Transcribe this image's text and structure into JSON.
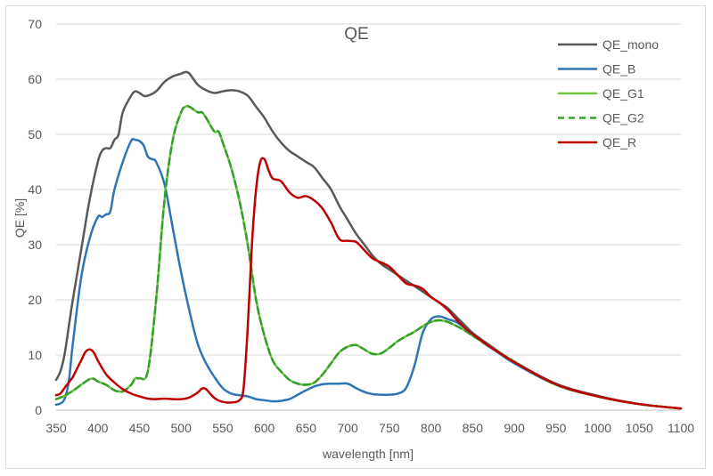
{
  "chart_data": {
    "type": "line",
    "title": "QE",
    "xlabel": "wavelength [nm]",
    "ylabel": "QE [%]",
    "xlim": [
      350,
      1100
    ],
    "ylim": [
      0,
      70
    ],
    "x_ticks": [
      "350",
      "400",
      "450",
      "500",
      "550",
      "600",
      "650",
      "700",
      "750",
      "800",
      "850",
      "900",
      "950",
      "1000",
      "1050",
      "1100"
    ],
    "y_ticks": [
      "0",
      "10",
      "20",
      "30",
      "40",
      "50",
      "60",
      "70"
    ],
    "grid": "horizontal",
    "legend_position": "top-right",
    "series": [
      {
        "name": "QE_mono",
        "color": "#595959",
        "dash": false,
        "points": [
          [
            350,
            5.5
          ],
          [
            355,
            7
          ],
          [
            360,
            10
          ],
          [
            365,
            15
          ],
          [
            370,
            20
          ],
          [
            380,
            29
          ],
          [
            390,
            38
          ],
          [
            400,
            45
          ],
          [
            405,
            47
          ],
          [
            410,
            47.5
          ],
          [
            415,
            47.5
          ],
          [
            420,
            49
          ],
          [
            425,
            50
          ],
          [
            430,
            54
          ],
          [
            440,
            57
          ],
          [
            445,
            57.8
          ],
          [
            450,
            57.5
          ],
          [
            455,
            57
          ],
          [
            460,
            57
          ],
          [
            470,
            57.8
          ],
          [
            480,
            59.5
          ],
          [
            490,
            60.5
          ],
          [
            500,
            61
          ],
          [
            505,
            61.3
          ],
          [
            510,
            61
          ],
          [
            520,
            59
          ],
          [
            530,
            58
          ],
          [
            540,
            57.5
          ],
          [
            550,
            57.8
          ],
          [
            560,
            58
          ],
          [
            570,
            57.8
          ],
          [
            580,
            57
          ],
          [
            590,
            55
          ],
          [
            600,
            53
          ],
          [
            610,
            50.5
          ],
          [
            620,
            48.5
          ],
          [
            630,
            47
          ],
          [
            640,
            46
          ],
          [
            650,
            45
          ],
          [
            660,
            44
          ],
          [
            670,
            42
          ],
          [
            680,
            40
          ],
          [
            690,
            37
          ],
          [
            700,
            34.5
          ],
          [
            710,
            32
          ],
          [
            720,
            30
          ],
          [
            730,
            28
          ],
          [
            740,
            26.5
          ],
          [
            750,
            25.5
          ],
          [
            760,
            24.5
          ],
          [
            770,
            23.5
          ],
          [
            780,
            22.5
          ],
          [
            790,
            21.5
          ],
          [
            800,
            20.5
          ],
          [
            810,
            19.5
          ],
          [
            820,
            18.5
          ],
          [
            830,
            17
          ],
          [
            840,
            15.5
          ],
          [
            850,
            14
          ],
          [
            870,
            11.8
          ],
          [
            900,
            8.8
          ],
          [
            950,
            4.8
          ],
          [
            1000,
            2.6
          ],
          [
            1050,
            1.1
          ],
          [
            1100,
            0.3
          ]
        ]
      },
      {
        "name": "QE_B",
        "color": "#2e75b6",
        "dash": false,
        "points": [
          [
            350,
            1
          ],
          [
            355,
            1.2
          ],
          [
            360,
            2
          ],
          [
            365,
            5
          ],
          [
            370,
            12
          ],
          [
            380,
            24
          ],
          [
            390,
            31
          ],
          [
            400,
            35
          ],
          [
            405,
            35
          ],
          [
            410,
            35.5
          ],
          [
            415,
            36
          ],
          [
            420,
            40
          ],
          [
            430,
            45
          ],
          [
            440,
            48.8
          ],
          [
            445,
            49
          ],
          [
            450,
            48.8
          ],
          [
            455,
            48
          ],
          [
            460,
            46
          ],
          [
            465,
            45.5
          ],
          [
            470,
            45
          ],
          [
            480,
            41
          ],
          [
            490,
            33
          ],
          [
            500,
            25
          ],
          [
            510,
            18
          ],
          [
            520,
            12
          ],
          [
            530,
            8.5
          ],
          [
            540,
            6
          ],
          [
            550,
            4
          ],
          [
            560,
            3
          ],
          [
            570,
            2.7
          ],
          [
            580,
            2.5
          ],
          [
            590,
            2
          ],
          [
            600,
            1.8
          ],
          [
            610,
            1.6
          ],
          [
            620,
            1.7
          ],
          [
            630,
            2
          ],
          [
            640,
            2.8
          ],
          [
            650,
            3.6
          ],
          [
            660,
            4.3
          ],
          [
            670,
            4.7
          ],
          [
            680,
            4.8
          ],
          [
            690,
            4.8
          ],
          [
            700,
            4.8
          ],
          [
            710,
            4
          ],
          [
            720,
            3.3
          ],
          [
            730,
            2.9
          ],
          [
            740,
            2.8
          ],
          [
            750,
            2.8
          ],
          [
            760,
            3
          ],
          [
            770,
            4
          ],
          [
            780,
            8
          ],
          [
            790,
            14
          ],
          [
            800,
            16.5
          ],
          [
            810,
            17
          ],
          [
            820,
            16.5
          ],
          [
            830,
            16
          ],
          [
            840,
            15
          ],
          [
            850,
            14
          ],
          [
            860,
            12.5
          ],
          [
            880,
            10.5
          ],
          [
            900,
            8.5
          ],
          [
            950,
            4.6
          ],
          [
            1000,
            2.5
          ],
          [
            1050,
            1.1
          ],
          [
            1100,
            0.3
          ]
        ]
      },
      {
        "name": "QE_G1",
        "color": "#70c640",
        "dash": false,
        "points": [
          [
            350,
            2
          ],
          [
            360,
            2.6
          ],
          [
            370,
            3.5
          ],
          [
            380,
            4.6
          ],
          [
            390,
            5.6
          ],
          [
            395,
            5.7
          ],
          [
            400,
            5.2
          ],
          [
            410,
            4.6
          ],
          [
            420,
            3.6
          ],
          [
            430,
            3.4
          ],
          [
            440,
            4.6
          ],
          [
            445,
            5.8
          ],
          [
            450,
            5.8
          ],
          [
            460,
            7
          ],
          [
            470,
            20
          ],
          [
            480,
            38
          ],
          [
            490,
            49
          ],
          [
            500,
            54
          ],
          [
            505,
            55
          ],
          [
            510,
            55
          ],
          [
            520,
            54
          ],
          [
            525,
            54
          ],
          [
            530,
            53
          ],
          [
            540,
            50.5
          ],
          [
            545,
            50.5
          ],
          [
            550,
            48.5
          ],
          [
            560,
            44
          ],
          [
            570,
            38
          ],
          [
            580,
            30
          ],
          [
            590,
            20
          ],
          [
            600,
            13.5
          ],
          [
            610,
            9
          ],
          [
            620,
            7
          ],
          [
            630,
            5.5
          ],
          [
            640,
            4.8
          ],
          [
            650,
            4.6
          ],
          [
            660,
            5
          ],
          [
            670,
            6.5
          ],
          [
            680,
            8.5
          ],
          [
            690,
            10.5
          ],
          [
            700,
            11.5
          ],
          [
            710,
            11.8
          ],
          [
            720,
            11
          ],
          [
            730,
            10.2
          ],
          [
            740,
            10.3
          ],
          [
            750,
            11.3
          ],
          [
            760,
            12.5
          ],
          [
            770,
            13.4
          ],
          [
            780,
            14.2
          ],
          [
            790,
            15.2
          ],
          [
            800,
            16
          ],
          [
            810,
            16.3
          ],
          [
            820,
            16
          ],
          [
            830,
            15.3
          ],
          [
            840,
            14.5
          ],
          [
            850,
            13.5
          ],
          [
            870,
            11.6
          ],
          [
            900,
            8.8
          ],
          [
            950,
            4.6
          ],
          [
            1000,
            2.5
          ],
          [
            1050,
            1.1
          ],
          [
            1100,
            0.3
          ]
        ]
      },
      {
        "name": "QE_G2",
        "color": "#33a02c",
        "dash": true,
        "points": [
          [
            350,
            2
          ],
          [
            360,
            2.6
          ],
          [
            370,
            3.5
          ],
          [
            380,
            4.6
          ],
          [
            390,
            5.6
          ],
          [
            395,
            5.7
          ],
          [
            400,
            5.2
          ],
          [
            410,
            4.6
          ],
          [
            420,
            3.6
          ],
          [
            430,
            3.4
          ],
          [
            440,
            4.6
          ],
          [
            445,
            5.8
          ],
          [
            450,
            5.8
          ],
          [
            460,
            7
          ],
          [
            470,
            20
          ],
          [
            480,
            38
          ],
          [
            490,
            49
          ],
          [
            500,
            54
          ],
          [
            505,
            55
          ],
          [
            510,
            55
          ],
          [
            520,
            54
          ],
          [
            525,
            54
          ],
          [
            530,
            53
          ],
          [
            540,
            50.5
          ],
          [
            545,
            50.5
          ],
          [
            550,
            48.5
          ],
          [
            560,
            44
          ],
          [
            570,
            38
          ],
          [
            580,
            30
          ],
          [
            590,
            20
          ],
          [
            600,
            13.5
          ],
          [
            610,
            9
          ],
          [
            620,
            7
          ],
          [
            630,
            5.5
          ],
          [
            640,
            4.8
          ],
          [
            650,
            4.6
          ],
          [
            660,
            5
          ],
          [
            670,
            6.5
          ],
          [
            680,
            8.5
          ],
          [
            690,
            10.5
          ],
          [
            700,
            11.5
          ],
          [
            710,
            11.8
          ],
          [
            720,
            11
          ],
          [
            730,
            10.2
          ],
          [
            740,
            10.3
          ],
          [
            750,
            11.3
          ],
          [
            760,
            12.5
          ],
          [
            770,
            13.4
          ],
          [
            780,
            14.2
          ],
          [
            790,
            15.2
          ],
          [
            800,
            16
          ],
          [
            810,
            16.3
          ],
          [
            820,
            16
          ],
          [
            830,
            15.3
          ],
          [
            840,
            14.5
          ],
          [
            850,
            13.5
          ],
          [
            870,
            11.6
          ],
          [
            900,
            8.8
          ],
          [
            950,
            4.6
          ],
          [
            1000,
            2.5
          ],
          [
            1050,
            1.1
          ],
          [
            1100,
            0.3
          ]
        ]
      },
      {
        "name": "QE_R",
        "color": "#c00000",
        "dash": false,
        "points": [
          [
            350,
            2.7
          ],
          [
            355,
            3
          ],
          [
            360,
            4
          ],
          [
            365,
            5
          ],
          [
            370,
            6
          ],
          [
            375,
            7.5
          ],
          [
            380,
            9
          ],
          [
            385,
            10.5
          ],
          [
            390,
            11
          ],
          [
            395,
            10.5
          ],
          [
            400,
            9
          ],
          [
            410,
            6.5
          ],
          [
            420,
            5
          ],
          [
            430,
            3.8
          ],
          [
            440,
            3
          ],
          [
            450,
            2.5
          ],
          [
            460,
            2.1
          ],
          [
            470,
            2
          ],
          [
            480,
            2.1
          ],
          [
            490,
            2
          ],
          [
            500,
            2
          ],
          [
            510,
            2.3
          ],
          [
            520,
            3.2
          ],
          [
            525,
            3.9
          ],
          [
            530,
            3.8
          ],
          [
            540,
            2.2
          ],
          [
            550,
            1.5
          ],
          [
            560,
            1.4
          ],
          [
            570,
            1.8
          ],
          [
            575,
            4
          ],
          [
            580,
            15
          ],
          [
            585,
            30
          ],
          [
            590,
            40
          ],
          [
            595,
            45
          ],
          [
            600,
            45.5
          ],
          [
            605,
            43.5
          ],
          [
            610,
            42
          ],
          [
            620,
            41.5
          ],
          [
            630,
            39.5
          ],
          [
            640,
            38.5
          ],
          [
            650,
            38.8
          ],
          [
            660,
            38
          ],
          [
            670,
            36.5
          ],
          [
            680,
            34
          ],
          [
            690,
            31
          ],
          [
            700,
            30.7
          ],
          [
            710,
            30.5
          ],
          [
            720,
            29
          ],
          [
            730,
            27.5
          ],
          [
            740,
            26.8
          ],
          [
            750,
            26
          ],
          [
            760,
            24.5
          ],
          [
            770,
            23
          ],
          [
            780,
            22.6
          ],
          [
            790,
            22
          ],
          [
            800,
            20.5
          ],
          [
            810,
            19.5
          ],
          [
            820,
            18.2
          ],
          [
            830,
            16.5
          ],
          [
            840,
            15
          ],
          [
            850,
            13.8
          ],
          [
            870,
            11.6
          ],
          [
            900,
            8.7
          ],
          [
            950,
            4.7
          ],
          [
            1000,
            2.5
          ],
          [
            1050,
            1.1
          ],
          [
            1100,
            0.3
          ]
        ]
      }
    ]
  }
}
